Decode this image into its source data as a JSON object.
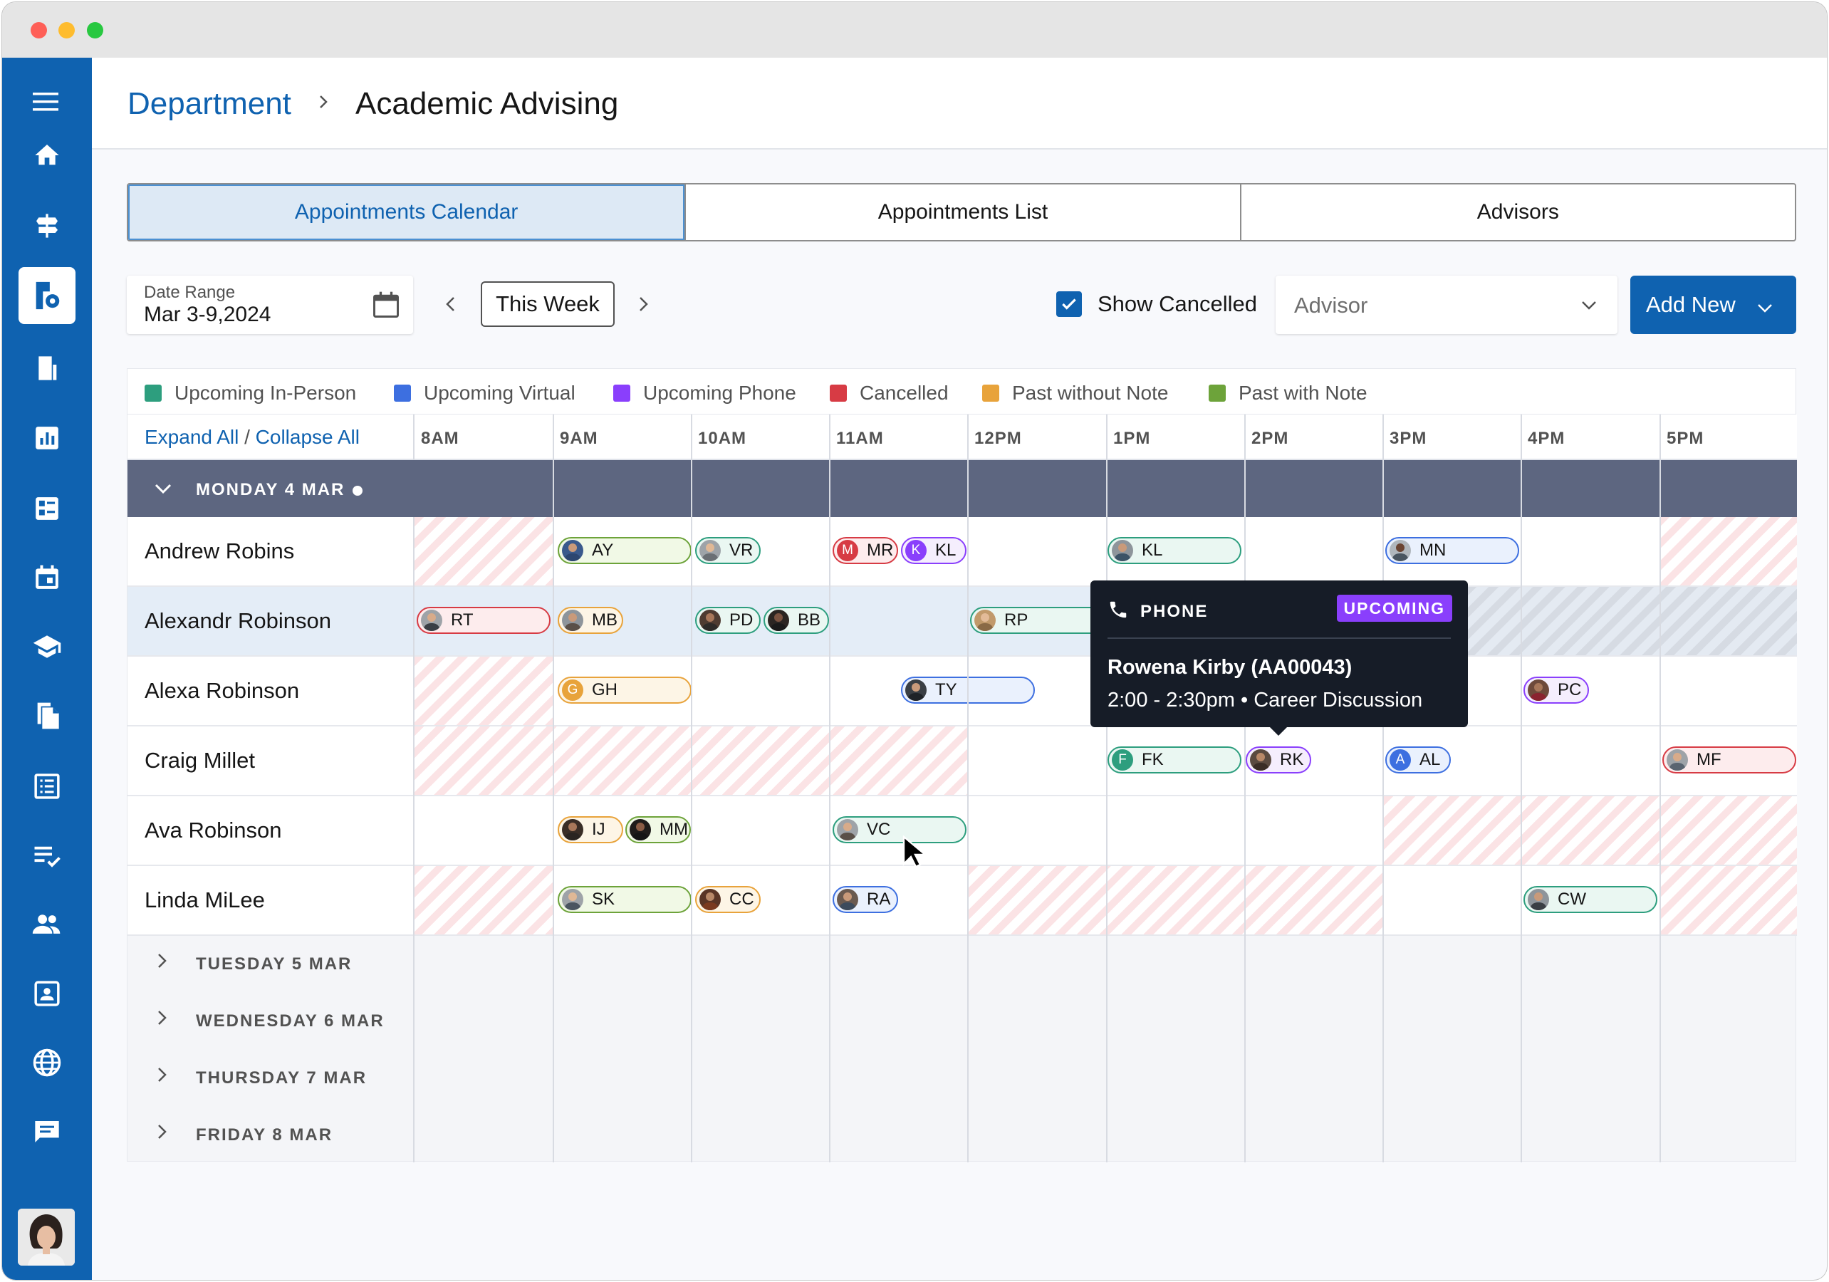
{
  "header": {
    "breadcrumb_parent": "Department",
    "breadcrumb_current": "Academic Advising"
  },
  "tabs": [
    {
      "label": "Appointments Calendar",
      "active": true
    },
    {
      "label": "Appointments List"
    },
    {
      "label": "Advisors"
    }
  ],
  "toolbar": {
    "date_range_label": "Date Range",
    "date_range_value": "Mar 3-9,2024",
    "this_week": "This Week",
    "show_cancelled_label": "Show Cancelled",
    "show_cancelled_checked": true,
    "advisor_placeholder": "Advisor",
    "add_new_label": "Add New"
  },
  "legend": [
    {
      "label": "Upcoming In-Person",
      "color": "#2d9e7e"
    },
    {
      "label": "Upcoming Virtual",
      "color": "#3d6fe0"
    },
    {
      "label": "Upcoming Phone",
      "color": "#8a3ffc"
    },
    {
      "label": "Cancelled",
      "color": "#d73b44"
    },
    {
      "label": "Past without Note",
      "color": "#e8a33b"
    },
    {
      "label": "Past with Note",
      "color": "#6da33a"
    }
  ],
  "calendar": {
    "expand_all": "Expand All",
    "separator": "/",
    "collapse_all": "Collapse All",
    "hours": [
      "8AM",
      "9AM",
      "10AM",
      "11AM",
      "12PM",
      "1PM",
      "2PM",
      "3PM",
      "4PM",
      "5PM"
    ],
    "expanded_day": "MONDAY 4 MAR",
    "advisors": [
      {
        "name": "Andrew Robins",
        "appointments": [
          {
            "initials": "AY",
            "status": "past-with-note",
            "photo": true
          },
          {
            "initials": "VR",
            "status": "upcoming-in-person",
            "photo": true
          },
          {
            "initials": "MR",
            "status": "cancelled",
            "badge": "M"
          },
          {
            "initials": "KL",
            "status": "upcoming-phone",
            "badge": "K"
          },
          {
            "initials": "KL",
            "status": "upcoming-in-person",
            "photo": true
          },
          {
            "initials": "MN",
            "status": "upcoming-virtual",
            "photo": true
          }
        ]
      },
      {
        "name": "Alexandr Robinson",
        "selected": true,
        "appointments": [
          {
            "initials": "RT",
            "status": "cancelled",
            "photo": true
          },
          {
            "initials": "MB",
            "status": "past-without-note",
            "photo": true
          },
          {
            "initials": "PD",
            "status": "upcoming-in-person",
            "photo": true
          },
          {
            "initials": "BB",
            "status": "upcoming-in-person",
            "photo": true
          },
          {
            "initials": "RP",
            "status": "upcoming-in-person",
            "photo": true
          }
        ]
      },
      {
        "name": "Alexa Robinson",
        "appointments": [
          {
            "initials": "GH",
            "status": "past-without-note",
            "badge": "G"
          },
          {
            "initials": "TY",
            "status": "upcoming-virtual",
            "photo": true
          },
          {
            "initials": "PC",
            "status": "upcoming-phone",
            "photo": true
          }
        ]
      },
      {
        "name": "Craig Millet",
        "appointments": [
          {
            "initials": "FK",
            "status": "upcoming-in-person",
            "badge": "F"
          },
          {
            "initials": "RK",
            "status": "upcoming-phone",
            "photo": true
          },
          {
            "initials": "AL",
            "status": "upcoming-virtual",
            "badge": "A"
          },
          {
            "initials": "MF",
            "status": "cancelled",
            "photo": true
          }
        ]
      },
      {
        "name": "Ava Robinson",
        "appointments": [
          {
            "initials": "IJ",
            "status": "past-without-note",
            "photo": true
          },
          {
            "initials": "MM",
            "status": "past-with-note",
            "photo": true
          },
          {
            "initials": "VC",
            "status": "upcoming-in-person",
            "photo": true
          }
        ]
      },
      {
        "name": "Linda MiLee",
        "appointments": [
          {
            "initials": "SK",
            "status": "past-with-note",
            "photo": true
          },
          {
            "initials": "CC",
            "status": "past-without-note",
            "photo": true
          },
          {
            "initials": "RA",
            "status": "upcoming-virtual",
            "photo": true
          },
          {
            "initials": "CW",
            "status": "upcoming-in-person",
            "photo": true
          }
        ]
      }
    ],
    "collapsed_days": [
      "TUESDAY 5 MAR",
      "WEDNESDAY 6 MAR",
      "THURSDAY 7 MAR",
      "FRIDAY 8 MAR"
    ]
  },
  "tooltip": {
    "type": "PHONE",
    "status": "UPCOMING",
    "title": "Rowena Kirby (AA00043)",
    "details": "2:00 - 2:30pm • Career Discussion"
  },
  "sidebar_icons": [
    "menu-icon",
    "home-icon",
    "signpost-icon",
    "department-settings-icon",
    "building-icon",
    "bar-chart-icon",
    "dashboard-icon",
    "calendar-icon",
    "graduation-cap-icon",
    "documents-icon",
    "list-icon",
    "checklist-icon",
    "people-icon",
    "contact-card-icon",
    "globe-icon",
    "chat-icon"
  ],
  "colors": {
    "brand": "#0f62b0",
    "day_band": "#5d6680",
    "tooltip_bg": "#161c27",
    "badge_upcoming": "#8a3ffc"
  }
}
